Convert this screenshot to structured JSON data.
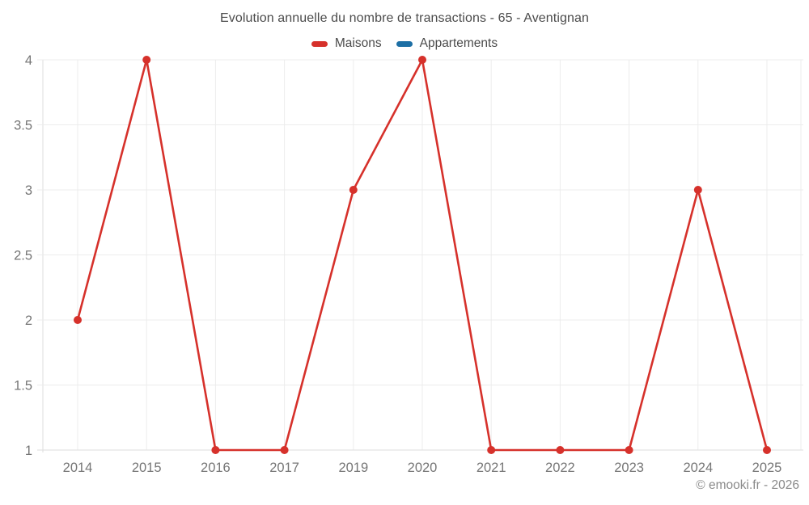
{
  "header": {
    "title": "Evolution annuelle du nombre de transactions - 65 - Aventignan"
  },
  "footer": {
    "credit": "© emooki.fr - 2026"
  },
  "chart_data": {
    "type": "line",
    "title": "Evolution annuelle du nombre de transactions - 65 - Aventignan",
    "xlabel": "",
    "ylabel": "",
    "categories": [
      "2014",
      "2015",
      "2016",
      "2017",
      "2019",
      "2020",
      "2021",
      "2022",
      "2023",
      "2024",
      "2025"
    ],
    "series": [
      {
        "name": "Maisons",
        "color": "#d6312b",
        "values": [
          2,
          4,
          1,
          1,
          3,
          4,
          1,
          1,
          1,
          3,
          1
        ]
      },
      {
        "name": "Appartements",
        "color": "#1d6fa5",
        "values": []
      }
    ],
    "ylim": [
      1,
      4
    ],
    "ytick_step": 0.5,
    "yticks": [
      "1",
      "1.5",
      "2",
      "2.5",
      "3",
      "3.5",
      "4"
    ],
    "grid": true,
    "legend_position": "top",
    "colors": {
      "gridline": "#ececec",
      "axis_line": "#dedede",
      "tick_label": "#767676"
    }
  }
}
